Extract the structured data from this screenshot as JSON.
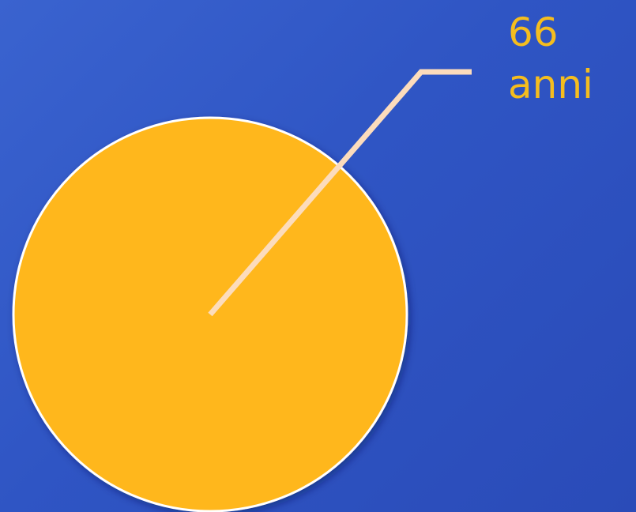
{
  "chart_data": {
    "type": "pie",
    "slices": [
      {
        "label": "66 anni",
        "value": 100,
        "color": "#ffb71b"
      }
    ],
    "data_label": "66\nanni",
    "label_color": "#f5bd1e",
    "leader_line_color": "#fcdcbc",
    "background_colors": [
      "#3a63cf",
      "#2a4bb8"
    ],
    "slice_border_color": "#ffffff"
  }
}
